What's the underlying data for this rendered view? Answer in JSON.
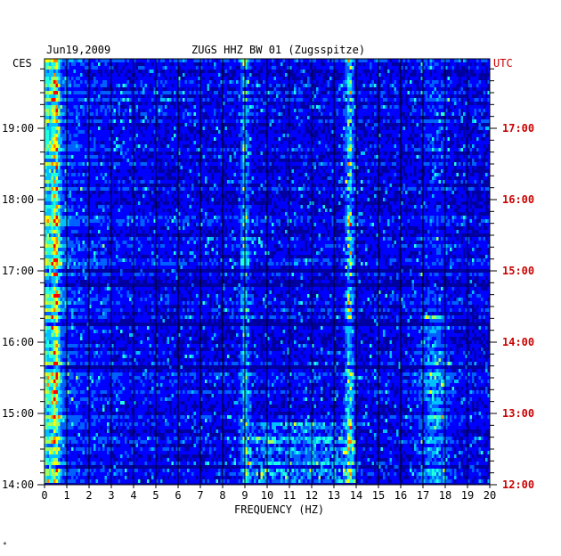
{
  "header": {
    "date": "Jun19,2009",
    "station": "ZUGS HHZ BW 01 (Zugsspitze)"
  },
  "chart_data": {
    "type": "heatmap",
    "title": "ZUGS HHZ BW 01 (Zugsspitze)",
    "date": "Jun19,2009",
    "xlabel": "FREQUENCY (HZ)",
    "xlim": [
      0,
      20
    ],
    "x_ticks": [
      "0",
      "1",
      "2",
      "3",
      "4",
      "5",
      "6",
      "7",
      "8",
      "9",
      "10",
      "11",
      "12",
      "13",
      "14",
      "15",
      "16",
      "17",
      "18",
      "19",
      "20"
    ],
    "y_left_label": "CES",
    "y_right_label": "UTC",
    "y_left_ticks": [
      "19:00",
      "18:00",
      "17:00",
      "16:00",
      "15:00",
      "14:00"
    ],
    "y_right_ticks": [
      "17:00",
      "16:00",
      "15:00",
      "14:00",
      "13:00",
      "12:00"
    ],
    "time_range_ces": [
      "14:00",
      "19:47"
    ],
    "colormap": [
      "#0000a0",
      "#0000ff",
      "#0060ff",
      "#00c0ff",
      "#20ffe0",
      "#a0ff60",
      "#ffff00",
      "#ff8000",
      "#ff0000"
    ],
    "grid": true,
    "features": [
      {
        "type": "band",
        "freq_hz": 0.5,
        "description_intensity": 0.75
      },
      {
        "type": "band",
        "freq_hz": 9.0,
        "description_intensity": 0.5
      },
      {
        "type": "band",
        "freq_hz": 13.7,
        "description_intensity": 0.65
      },
      {
        "type": "band",
        "freq_hz": 17.5,
        "description_intensity": 0.4
      }
    ]
  },
  "colors": {
    "tick_left": "#000000",
    "tick_right": "#cc0000",
    "grid": "#000000",
    "background": "#0000c0"
  }
}
